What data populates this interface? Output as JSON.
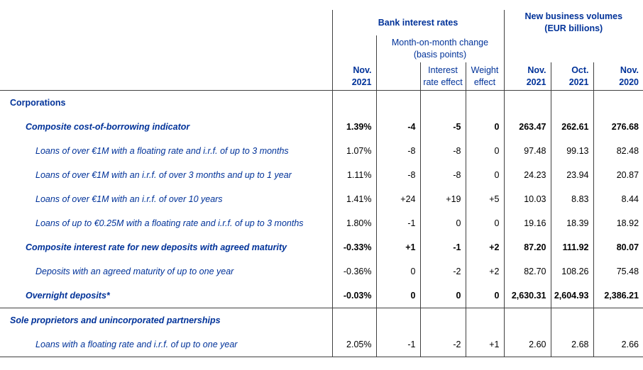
{
  "colors": {
    "accent_blue": "#003299",
    "value_text": "#000000",
    "line": "#404040"
  },
  "header": {
    "bank_interest_rates": "Bank interest rates",
    "new_business_volumes_l1": "New business volumes",
    "new_business_volumes_l2": "(EUR billions)",
    "mom_change_l1": "Month-on-month change",
    "mom_change_l2": "(basis points)",
    "columns": [
      {
        "l1": "Nov.",
        "l2": "2021"
      },
      {
        "l1": "",
        "l2": ""
      },
      {
        "l1": "Interest",
        "l2": "rate effect"
      },
      {
        "l1": "Weight",
        "l2": "effect"
      },
      {
        "l1": "Nov.",
        "l2": "2021"
      },
      {
        "l1": "Oct.",
        "l2": "2021"
      },
      {
        "l1": "Nov.",
        "l2": "2020"
      }
    ]
  },
  "table": {
    "rows": [
      {
        "label": "Corporations",
        "style": "section",
        "indent": 0,
        "border_bottom": false,
        "values": [
          "",
          "",
          "",
          "",
          "",
          "",
          ""
        ]
      },
      {
        "label": "Composite cost-of-borrowing indicator",
        "style": "subtotal",
        "indent": 1,
        "border_bottom": false,
        "values": [
          "1.39%",
          "-4",
          "-5",
          "0",
          "263.47",
          "262.61",
          "276.68"
        ]
      },
      {
        "label": "Loans of over €1M with a floating rate and i.r.f. of up to 3 months",
        "style": "detail",
        "indent": 2,
        "border_bottom": false,
        "values": [
          "1.07%",
          "-8",
          "-8",
          "0",
          "97.48",
          "99.13",
          "82.48"
        ]
      },
      {
        "label": "Loans of over €1M with an i.r.f. of over 3 months and up to 1 year",
        "style": "detail",
        "indent": 2,
        "border_bottom": false,
        "values": [
          "1.11%",
          "-8",
          "-8",
          "0",
          "24.23",
          "23.94",
          "20.87"
        ]
      },
      {
        "label": "Loans of over €1M with an i.r.f. of over 10 years",
        "style": "detail",
        "indent": 2,
        "border_bottom": false,
        "values": [
          "1.41%",
          "+24",
          "+19",
          "+5",
          "10.03",
          "8.83",
          "8.44"
        ]
      },
      {
        "label": "Loans of up to €0.25M with a floating rate and i.r.f. of up to 3 months",
        "style": "detail",
        "indent": 2,
        "border_bottom": false,
        "values": [
          "1.80%",
          "-1",
          "0",
          "0",
          "19.16",
          "18.39",
          "18.92"
        ]
      },
      {
        "label": "Composite interest rate for new deposits with agreed maturity",
        "style": "subtotal",
        "indent": 1,
        "border_bottom": false,
        "values": [
          "-0.33%",
          "+1",
          "-1",
          "+2",
          "87.20",
          "111.92",
          "80.07"
        ]
      },
      {
        "label": "Deposits with an agreed maturity of up to one year",
        "style": "detail",
        "indent": 2,
        "border_bottom": false,
        "values": [
          "-0.36%",
          "0",
          "-2",
          "+2",
          "82.70",
          "108.26",
          "75.48"
        ]
      },
      {
        "label": "Overnight deposits*",
        "style": "subtotal",
        "indent": 1,
        "border_bottom": true,
        "values": [
          "-0.03%",
          "0",
          "0",
          "0",
          "2,630.31",
          "2,604.93",
          "2,386.21"
        ]
      },
      {
        "label": "Sole proprietors and unincorporated partnerships",
        "style": "section-em",
        "indent": 0,
        "border_bottom": false,
        "values": [
          "",
          "",
          "",
          "",
          "",
          "",
          ""
        ]
      },
      {
        "label": "Loans with a floating rate and i.r.f. of up to one year",
        "style": "detail",
        "indent": 2,
        "border_bottom": true,
        "values": [
          "2.05%",
          "-1",
          "-2",
          "+1",
          "2.60",
          "2.68",
          "2.66"
        ]
      }
    ]
  }
}
